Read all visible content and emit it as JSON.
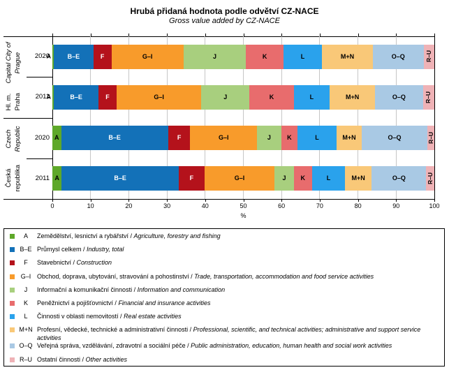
{
  "title": "Hrubá přidaná hodnota podle odvětví CZ-NACE",
  "subtitle": "Gross value added by CZ-NACE",
  "axis": {
    "xlabel": "%",
    "xmin": 0,
    "xmax": 100,
    "tick_step": 10
  },
  "chart_data": {
    "type": "bar",
    "stacked": true,
    "orientation": "horizontal",
    "unit": "%",
    "xlim": [
      0,
      100
    ],
    "grid": true,
    "legend_position": "bottom",
    "series": [
      {
        "code": "A",
        "name_cs": "Zemědělství, lesnictví a rybářství",
        "name_en": "Agriculture, forestry and fishing",
        "color": "#5EA829",
        "label_color": "#000000",
        "rotate_label": false
      },
      {
        "code": "B–E",
        "name_cs": "Průmysl celkem",
        "name_en": "Industry, total",
        "color": "#1371B8",
        "label_color": "#FFFFFF",
        "rotate_label": false
      },
      {
        "code": "F",
        "name_cs": "Stavebnictví",
        "name_en": "Construction",
        "color": "#B4121B",
        "label_color": "#FFFFFF",
        "rotate_label": false
      },
      {
        "code": "G–I",
        "name_cs": "Obchod, doprava, ubytování, stravování a pohostinství",
        "name_en": "Trade, transportation, accommodation and food service activities",
        "color": "#F89B2B",
        "label_color": "#000000",
        "rotate_label": false
      },
      {
        "code": "J",
        "name_cs": "Informační a komunikační činnosti",
        "name_en": "Information and communication",
        "color": "#A8CF7E",
        "label_color": "#000000",
        "rotate_label": false
      },
      {
        "code": "K",
        "name_cs": "Peněžnictví a pojišťovnictví",
        "name_en": "Financial and insurance activities",
        "color": "#E86C6D",
        "label_color": "#000000",
        "rotate_label": false
      },
      {
        "code": "L",
        "name_cs": "Činnosti v oblasti nemovitostí",
        "name_en": "Real estate activities",
        "color": "#2AA2EC",
        "label_color": "#000000",
        "rotate_label": false
      },
      {
        "code": "M+N",
        "name_cs": "Profesní, vědecké, technické a administrativní činnosti",
        "name_en": "Professional, scientific, and technical activities; administrative and support service activities",
        "color": "#F9C878",
        "label_color": "#000000",
        "rotate_label": false
      },
      {
        "code": "O–Q",
        "name_cs": "Veřejná správa, vzdělávání, zdravotní a sociální péče",
        "name_en": "Public administration, education, human health and social work activities",
        "color": "#A9C9E4",
        "label_color": "#000000",
        "rotate_label": false
      },
      {
        "code": "R–U",
        "name_cs": "Ostatní činnosti",
        "name_en": "Other activities",
        "color": "#EFB2B6",
        "label_color": "#000000",
        "rotate_label": true
      }
    ],
    "groups": [
      {
        "region_cs": "Hl. m. Praha",
        "region_en": "Capital City of Prague",
        "bars": [
          {
            "year": "2020",
            "values": [
              0.4,
              10.3,
              4.8,
              18.8,
              16.4,
              9.8,
              10.1,
              13.3,
              13.3,
              2.8
            ]
          },
          {
            "year": "2011",
            "values": [
              0.4,
              11.7,
              4.7,
              22.2,
              12.6,
              11.6,
              9.4,
              11.9,
              12.5,
              3.0
            ]
          }
        ]
      },
      {
        "region_cs": "Česká republika",
        "region_en": "Czech Republic",
        "bars": [
          {
            "year": "2020",
            "values": [
              2.3,
              28.0,
              5.8,
              17.5,
              6.3,
              4.3,
              10.2,
              6.6,
              17.2,
              1.8
            ]
          },
          {
            "year": "2011",
            "values": [
              2.4,
              30.7,
              6.7,
              18.4,
              5.0,
              4.8,
              8.6,
              7.0,
              14.3,
              2.1
            ]
          }
        ]
      }
    ]
  }
}
